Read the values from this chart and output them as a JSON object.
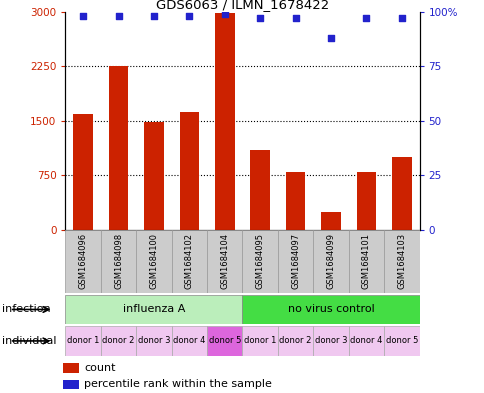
{
  "title": "GDS6063 / ILMN_1678422",
  "samples": [
    "GSM1684096",
    "GSM1684098",
    "GSM1684100",
    "GSM1684102",
    "GSM1684104",
    "GSM1684095",
    "GSM1684097",
    "GSM1684099",
    "GSM1684101",
    "GSM1684103"
  ],
  "counts": [
    1600,
    2250,
    1480,
    1620,
    2980,
    1100,
    800,
    250,
    800,
    1000
  ],
  "percentiles": [
    98.0,
    98.0,
    98.0,
    98.0,
    99.0,
    97.0,
    97.0,
    88.0,
    97.0,
    97.0
  ],
  "bar_color": "#cc2200",
  "dot_color": "#2222cc",
  "ylim_left": [
    0,
    3000
  ],
  "ylim_right": [
    0,
    100
  ],
  "yticks_left": [
    0,
    750,
    1500,
    2250,
    3000
  ],
  "yticks_right": [
    0,
    25,
    50,
    75,
    100
  ],
  "ytick_labels_left": [
    "0",
    "750",
    "1500",
    "2250",
    "3000"
  ],
  "ytick_labels_right": [
    "0",
    "25",
    "50",
    "75",
    "100%"
  ],
  "infection_groups": [
    {
      "label": "influenza A",
      "start": 0,
      "end": 5,
      "color": "#bbeebb"
    },
    {
      "label": "no virus control",
      "start": 5,
      "end": 10,
      "color": "#44dd44"
    }
  ],
  "individual_labels": [
    "donor 1",
    "donor 2",
    "donor 3",
    "donor 4",
    "donor 5",
    "donor 1",
    "donor 2",
    "donor 3",
    "donor 4",
    "donor 5"
  ],
  "individual_colors": [
    "#f0c8f0",
    "#f0c8f0",
    "#f0c8f0",
    "#f0c8f0",
    "#dd66dd",
    "#f0c8f0",
    "#f0c8f0",
    "#f0c8f0",
    "#f0c8f0",
    "#f0c8f0"
  ],
  "infection_label": "infection",
  "individual_label": "individual",
  "legend_count_label": "count",
  "legend_percentile_label": "percentile rank within the sample",
  "bg_color": "#ffffff",
  "sample_bg_color": "#cccccc",
  "bar_width": 0.55
}
